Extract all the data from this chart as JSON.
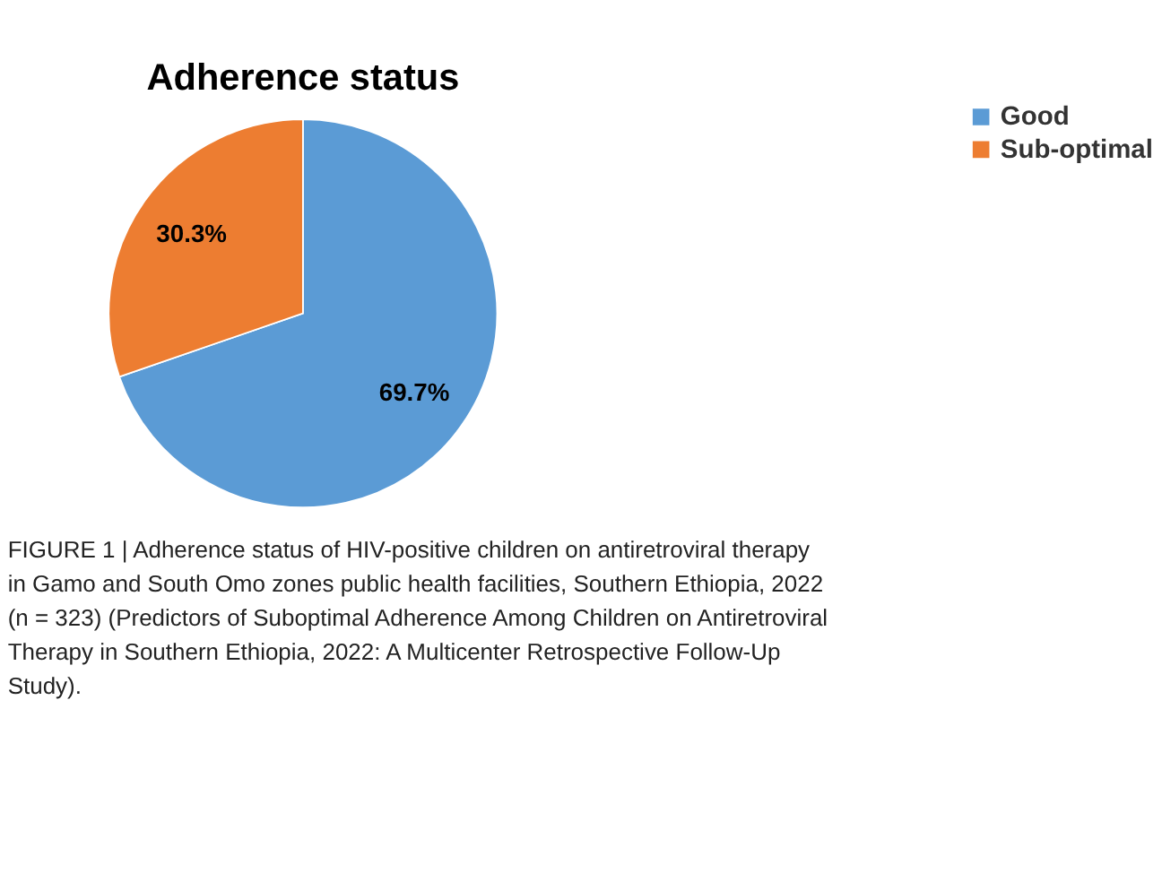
{
  "chart_data": {
    "type": "pie",
    "title": "Adherence status",
    "categories": [
      "Good",
      "Sub-optimal"
    ],
    "values": [
      69.7,
      30.3
    ],
    "colors": [
      "#5b9bd5",
      "#ed7d31"
    ],
    "value_labels": [
      "69.7%",
      "30.3%"
    ],
    "legend": "right",
    "annotations": [
      "FIGURE 1 | Adherence status of HIV-positive children on antiretroviral therapy in Gamo and South Omo zones public health facilities, Southern Ethiopia, 2022 (n = 323) (Predictors of Suboptimal Adherence Among Children on Antiretroviral Therapy in Southern Ethiopia, 2022: A Multicenter Retrospective Follow-Up Study)."
    ]
  }
}
